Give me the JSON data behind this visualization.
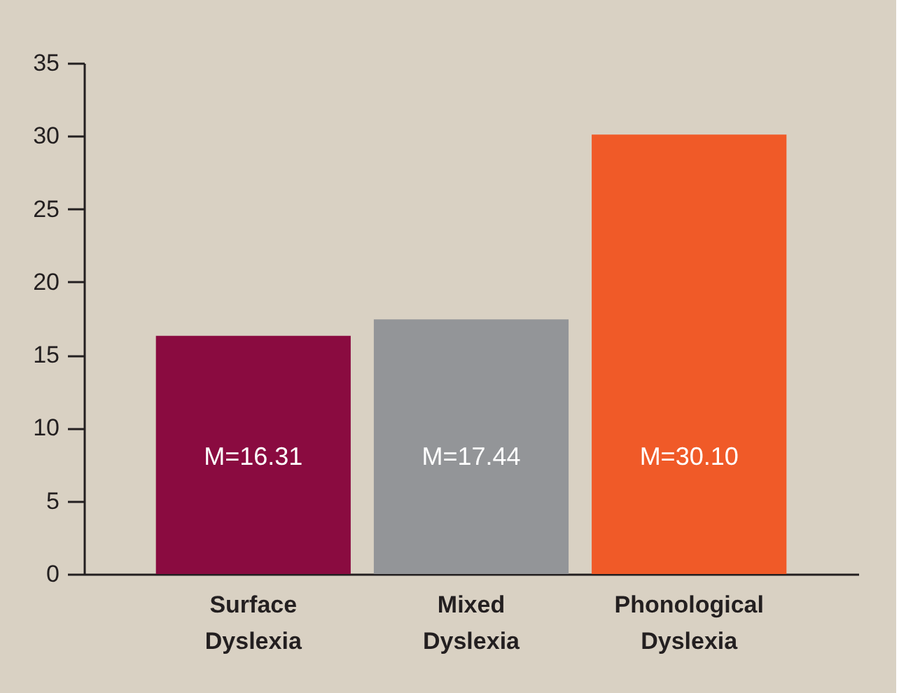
{
  "chart_data": {
    "type": "bar",
    "categories": [
      "Surface Dyslexia",
      "Mixed Dyslexia",
      "Phonological Dyslexia"
    ],
    "values": [
      16.31,
      17.44,
      30.1
    ],
    "colors": [
      "#8a0b40",
      "#939598",
      "#f05a28"
    ],
    "value_labels": [
      "M=16.31",
      "M=17.44",
      "M=30.10"
    ],
    "ylim": [
      0,
      35
    ],
    "yticks": [
      0,
      5,
      10,
      15,
      20,
      25,
      30,
      35
    ],
    "grid": false
  }
}
